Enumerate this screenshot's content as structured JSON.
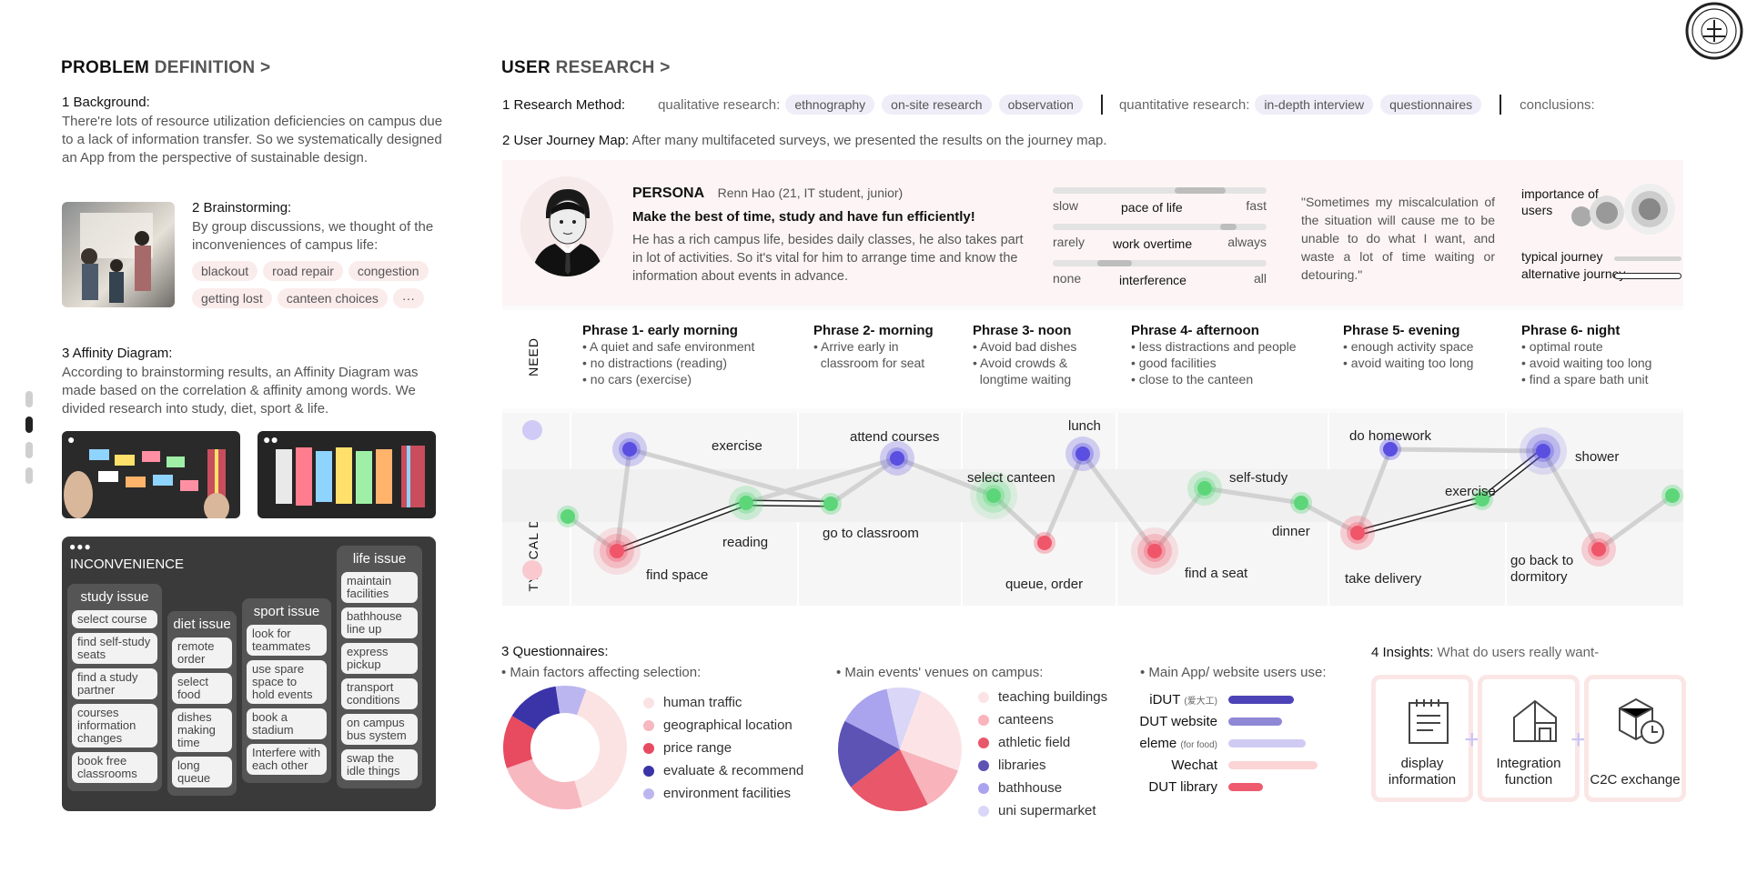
{
  "problem": {
    "title_strong": "PROBLEM",
    "title_lite": "DEFINITION >",
    "bg_head": "1 Background:",
    "bg_text": "There're lots of resource utilization deficiencies on campus due to a lack of information transfer.  So we systematically designed an App from the perspective of sustainable design.",
    "brain_head": "2 Brainstorming:",
    "brain_text": "By group discussions, we thought of the inconveniences of campus life:",
    "brain_tags": [
      "blackout",
      "road repair",
      "congestion",
      "getting lost",
      "canteen choices",
      "···"
    ],
    "aff_head": "3 Affinity Diagram:",
    "aff_text": "According to brainstorming results, an Affinity Diagram was made based on the correlation & affinity among words. We divided research into study, diet, sport & life."
  },
  "inconvenience": {
    "title": "INCONVENIENCE",
    "study": {
      "head": "study issue",
      "items": [
        "select course",
        "find self-study seats",
        "find a study partner",
        "courses information changes",
        "book free classrooms"
      ]
    },
    "diet": {
      "head": "diet issue",
      "items": [
        "remote order",
        "select food",
        "dishes making time",
        "long queue"
      ]
    },
    "sport": {
      "head": "sport issue",
      "items": [
        "look for teammates",
        "use spare space to hold events",
        "book a stadium",
        "Interfere with each other"
      ]
    },
    "life": {
      "head": "life issue",
      "items": [
        "maintain facilities",
        "bathhouse line up",
        "express pickup",
        "transport conditions",
        "on campus bus system",
        "swap the idle things"
      ]
    }
  },
  "research": {
    "title_strong": "USER",
    "title_lite": "RESEARCH >",
    "method_head": "1 Research Method:",
    "qual_label": "qualitative research:",
    "qual_tags": [
      "ethnography",
      "on-site research",
      "observation"
    ],
    "quant_label": "quantitative research:",
    "quant_tags": [
      "in-depth interview",
      "questionnaires"
    ],
    "conclusions": "conclusions:",
    "journey_head": "2 User Journey Map:",
    "journey_text": "After many multifaceted surveys, we presented the results on the journey map."
  },
  "persona": {
    "label": "PERSONA",
    "name": "Renn Hao (21, IT student, junior)",
    "motto": "Make the best of time, study and have fun efficiently!",
    "desc": "He has a rich campus life, besides daily classes, he also takes part in lot of activities. So it's vital for him to arrange time and know the information about events in advance.",
    "sliders": [
      {
        "left": "slow",
        "mid": "pace of life",
        "right": "fast",
        "level": 0.75
      },
      {
        "left": "rarely",
        "mid": "work overtime",
        "right": "always",
        "level": 0.85
      },
      {
        "left": "none",
        "mid": "interference",
        "right": "all",
        "level": 0.25
      }
    ],
    "quote": "\"Sometimes my miscalculation of the situation will cause me to be unable to do what I want, and waste a lot of time waiting or detouring.\"",
    "importance": "importance of users",
    "typical": "typical journey",
    "alternative": "alternative journey"
  },
  "need": {
    "label": "NEED",
    "phrases": [
      {
        "head": "Phrase 1- early morning",
        "lines": [
          "• A quiet and safe environment",
          "• no distractions (reading)",
          "• no cars (exercise)"
        ]
      },
      {
        "head": "Phrase 2- morning",
        "lines": [
          "• Arrive early in",
          "  classroom for seat"
        ]
      },
      {
        "head": "Phrase 3- noon",
        "lines": [
          "• Avoid bad dishes",
          "• Avoid crowds &",
          "  longtime waiting"
        ]
      },
      {
        "head": "Phrase 4- afternoon",
        "lines": [
          "• less distractions and people",
          "• good facilities",
          "• close to the canteen"
        ]
      },
      {
        "head": "Phrase 5- evening",
        "lines": [
          "• enough activity space",
          "• avoid waiting too long"
        ]
      },
      {
        "head": "Phrase 6- night",
        "lines": [
          "• optimal route",
          "• avoid waiting too long",
          "• find a spare bath unit"
        ]
      }
    ]
  },
  "journey": {
    "label": "TYPICAL DAY",
    "points": [
      {
        "label": "exercise"
      },
      {
        "label": "find space"
      },
      {
        "label": "reading"
      },
      {
        "label": "go to classroom"
      },
      {
        "label": "attend courses"
      },
      {
        "label": "select canteen"
      },
      {
        "label": "queue, order"
      },
      {
        "label": "lunch"
      },
      {
        "label": "find a seat"
      },
      {
        "label": "self-study"
      },
      {
        "label": "dinner"
      },
      {
        "label": "do homework"
      },
      {
        "label": "take delivery"
      },
      {
        "label": "exercise"
      },
      {
        "label": "shower"
      },
      {
        "label": "go back to dormitory"
      }
    ]
  },
  "questionnaires": {
    "head": "3 Questionnaires:",
    "factors_title": "• Main factors affecting selection:",
    "factors": [
      {
        "name": "human traffic",
        "value": 40,
        "color": "#fbe3e3"
      },
      {
        "name": "geographical location",
        "value": 24,
        "color": "#f7b8c0"
      },
      {
        "name": "price range",
        "value": 14,
        "color": "#e84a5f"
      },
      {
        "name": "evaluate & recommend",
        "value": 14,
        "color": "#3b33a8"
      },
      {
        "name": "environment facilities",
        "value": 8,
        "color": "#bcb6f0"
      }
    ],
    "venues_title": "• Main events' venues on campus:",
    "venues": [
      {
        "name": "teaching buildings",
        "value": 25,
        "color": "#fce4e6"
      },
      {
        "name": "canteens",
        "value": 12,
        "color": "#f8b3bb"
      },
      {
        "name": "athletic field",
        "value": 22,
        "color": "#e8576a"
      },
      {
        "name": "libraries",
        "value": 18,
        "color": "#5c53b5"
      },
      {
        "name": "bathhouse",
        "value": 14,
        "color": "#aaa3ee"
      },
      {
        "name": "uni supermarket",
        "value": 9,
        "color": "#d9d6f7"
      }
    ],
    "apps_title": "• Main App/ website users use:",
    "apps": [
      {
        "name": "iDUT",
        "note": "(爱大工)",
        "value": 0.85,
        "color": "#4c43b8"
      },
      {
        "name": "DUT website",
        "note": "",
        "value": 0.7,
        "color": "#8f88d6"
      },
      {
        "name": "eleme",
        "note": "(for food)",
        "value": 1.0,
        "color": "#cfcbf3"
      },
      {
        "name": "Wechat",
        "note": "",
        "value": 1.15,
        "color": "#fbd4d6"
      },
      {
        "name": "DUT library",
        "note": "",
        "value": 0.45,
        "color": "#ef5b6e"
      }
    ]
  },
  "insights": {
    "head": "4 Insights:",
    "sub": "What do users really want-",
    "cards": [
      {
        "label": "display information",
        "icon": "notepad-icon"
      },
      {
        "label": "Integration function",
        "icon": "house-icon"
      },
      {
        "label": "C2C exchange",
        "icon": "box-clock-icon"
      }
    ]
  },
  "colors": {
    "pink": "#f0566a",
    "purple": "#5a4fe0",
    "green": "#5dd67a"
  }
}
